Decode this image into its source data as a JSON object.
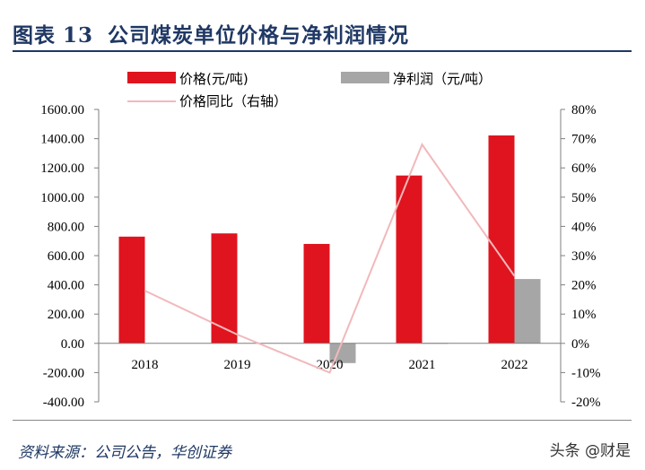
{
  "header": {
    "figure_prefix": "图表",
    "figure_number": "13",
    "title": "公司煤炭单位价格与净利润情况"
  },
  "source_text": "资料来源：公司公告，华创证券",
  "watermark_text": "头条 @财是",
  "chart_data": {
    "type": "bar",
    "categories": [
      "2018",
      "2019",
      "2020",
      "2021",
      "2022"
    ],
    "series": [
      {
        "name": "价格(元/吨)",
        "type": "bar",
        "axis": "left",
        "color": "#e0141e",
        "values": [
          730,
          752,
          680,
          1148,
          1422
        ]
      },
      {
        "name": "净利润（元/吨）",
        "type": "bar",
        "axis": "left",
        "color": "#a6a6a6",
        "values": [
          0,
          0,
          -135,
          3,
          440
        ]
      },
      {
        "name": "价格同比（右轴）",
        "type": "line",
        "axis": "right",
        "color": "#f2b8bc",
        "values": [
          18,
          3,
          -10,
          68,
          23
        ]
      }
    ],
    "y_left": {
      "ylim": [
        -400,
        1600
      ],
      "ticks": [
        1600,
        1400,
        1200,
        1000,
        800,
        600,
        400,
        200,
        0,
        -200,
        -400
      ],
      "tick_labels": [
        "1600.00",
        "1400.00",
        "1200.00",
        "1000.00",
        "800.00",
        "600.00",
        "400.00",
        "200.00",
        "0.00",
        "-200.00",
        "-400.00"
      ]
    },
    "y_right": {
      "ylim": [
        -20,
        80
      ],
      "ticks": [
        80,
        70,
        60,
        50,
        40,
        30,
        20,
        10,
        0,
        -10,
        -20
      ],
      "tick_labels": [
        "80%",
        "70%",
        "60%",
        "50%",
        "40%",
        "30%",
        "20%",
        "10%",
        "0%",
        "-10%",
        "-20%"
      ]
    },
    "grid": false,
    "legend_position": "top"
  }
}
